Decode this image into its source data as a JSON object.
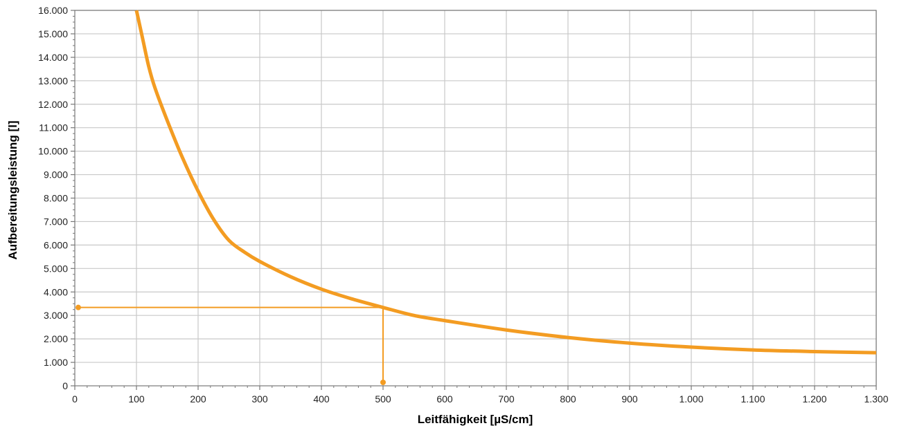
{
  "chart_data": {
    "type": "line",
    "xlabel": "Leitfähigkeit [µS/cm]",
    "ylabel": "Aufbereitungsleistung [l]",
    "xlim": [
      0,
      1300
    ],
    "ylim": [
      0,
      16000
    ],
    "grid": true,
    "x_ticks": [
      0,
      100,
      200,
      300,
      400,
      500,
      600,
      700,
      800,
      900,
      1000,
      1100,
      1200,
      1300
    ],
    "x_tick_labels": [
      "0",
      "100",
      "200",
      "300",
      "400",
      "500",
      "600",
      "700",
      "800",
      "900",
      "1.000",
      "1.100",
      "1.200",
      "1.300"
    ],
    "y_ticks": [
      0,
      1000,
      2000,
      3000,
      4000,
      5000,
      6000,
      7000,
      8000,
      9000,
      10000,
      11000,
      12000,
      13000,
      14000,
      15000,
      16000
    ],
    "y_tick_labels": [
      "0",
      "1.000",
      "2.000",
      "3.000",
      "4.000",
      "5.000",
      "6.000",
      "7.000",
      "8.000",
      "9.000",
      "10.000",
      "11.000",
      "12.000",
      "13.000",
      "14.000",
      "15.000",
      "16.000"
    ],
    "series": [
      {
        "color": "#F39C22",
        "x": [
          100,
          110,
          120,
          130,
          150,
          175,
          200,
          225,
          250,
          275,
          300,
          350,
          400,
          450,
          500,
          550,
          600,
          700,
          800,
          900,
          1000,
          1100,
          1200,
          1300
        ],
        "y": [
          16000,
          14800,
          13600,
          12700,
          11300,
          9700,
          8300,
          7100,
          6200,
          5700,
          5300,
          4650,
          4120,
          3700,
          3340,
          3000,
          2780,
          2380,
          2060,
          1820,
          1650,
          1530,
          1460,
          1410
        ]
      }
    ],
    "reference_point": {
      "x": 500,
      "y": 3340,
      "color": "#F39C22"
    }
  }
}
